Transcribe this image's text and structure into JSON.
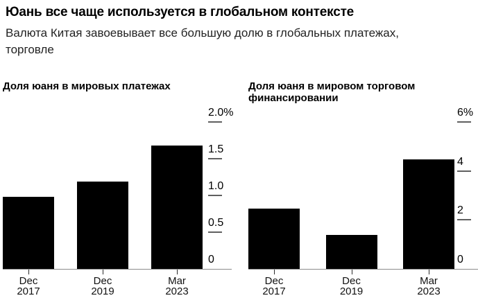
{
  "header": {
    "title": "Юань все чаще используется в глобальном контексте",
    "subtitle_lines": [
      "Валюта Китая завоевывает все большую долю в глобальных платежах,",
      "торговле"
    ]
  },
  "chart_data": [
    {
      "type": "bar",
      "title": "Доля юаня в мировых платежах",
      "categories": [
        "Dec 2017",
        "Dec 2019",
        "Mar 2023"
      ],
      "values": [
        0.98,
        1.19,
        1.68
      ],
      "unit": "%",
      "ylim": [
        0,
        2
      ],
      "yticks": [
        0,
        0.5,
        1,
        1.5,
        2
      ],
      "ytick_labels": [
        "0",
        "0.5",
        "1.0",
        "1.5",
        "2.0%"
      ],
      "axis_position": "right",
      "grid": false,
      "bar_color": "#000000"
    },
    {
      "type": "bar",
      "title": "Доля юаня в мировом торговом финансировании",
      "title_lines": [
        "Доля юаня в мировом торговом",
        "финансировании"
      ],
      "categories": [
        "Dec 2017",
        "Dec 2019",
        "Mar 2023"
      ],
      "values": [
        2.45,
        1.4,
        4.46
      ],
      "unit": "%",
      "ylim": [
        0,
        6
      ],
      "yticks": [
        0,
        2,
        4,
        6
      ],
      "ytick_labels": [
        "0",
        "2",
        "4",
        "6%"
      ],
      "axis_position": "right",
      "grid": false,
      "bar_color": "#000000"
    }
  ],
  "colors": {
    "background": "#ffffff",
    "bar": "#000000",
    "baseline": "#8c8c8c",
    "tick_dash": "#5f5f5f",
    "title_text": "#000000",
    "subtitle_text": "#222222"
  }
}
